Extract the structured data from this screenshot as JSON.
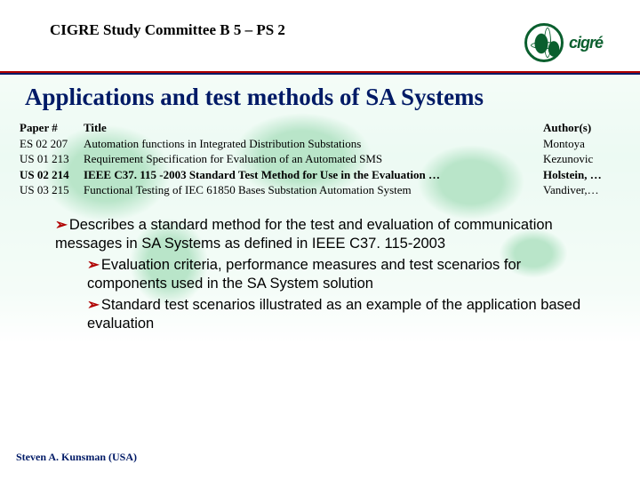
{
  "header": {
    "committee": "CIGRE Study Committee B 5 – PS 2",
    "logo_text": "cigré"
  },
  "title": "Applications and test methods of SA Systems",
  "colors": {
    "rule_top": "#b00000",
    "rule_bottom": "#001a66",
    "title_color": "#001a66",
    "bullet_arrow": "#b00000",
    "logo_green": "#0a5f2e",
    "map_green": "#66c78a",
    "background": "#ffffff"
  },
  "table": {
    "headers": {
      "paper": "Paper #",
      "title": "Title",
      "author": "Author(s)"
    },
    "rows": [
      {
        "paper": "ES 02 207",
        "title": "Automation functions in Integrated Distribution Substations",
        "author": "Montoya",
        "highlight": false
      },
      {
        "paper": "US 01 213",
        "title": "Requirement Specification for Evaluation of an Automated SMS",
        "author": "Kezunovic",
        "highlight": false
      },
      {
        "paper": "US 02 214",
        "title": "IEEE C37. 115 -2003 Standard Test Method for Use in the Evaluation …",
        "author": "Holstein, …",
        "highlight": true
      },
      {
        "paper": "US 03 215",
        "title": "Functional Testing of IEC 61850 Bases Substation Automation System",
        "author": "Vandiver,…",
        "highlight": false
      }
    ]
  },
  "bullets": {
    "level1_a": "Describes a standard method for the test and evaluation of communication messages in SA Systems as defined in IEEE C37. 115-2003",
    "level2_a": "Evaluation criteria, performance measures and test scenarios for components used in the SA System solution",
    "level2_b": "Standard test scenarios illustrated as an example of the application based evaluation"
  },
  "footer": "Steven A. Kunsman (USA)"
}
